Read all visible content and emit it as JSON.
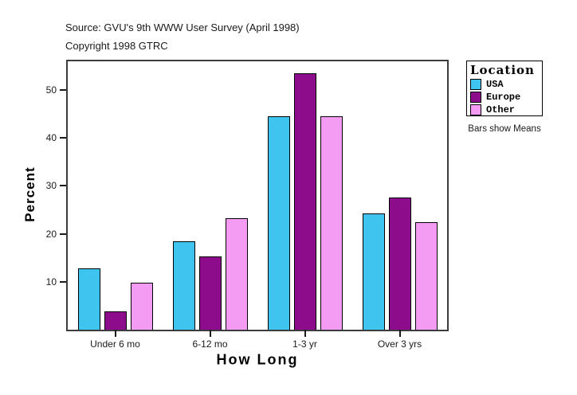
{
  "header": {
    "source": "Source: GVU's 9th WWW User Survey (April 1998)",
    "copyright": "Copyright 1998 GTRC"
  },
  "chart_data": {
    "type": "bar",
    "title": "",
    "categories": [
      "Under 6 mo",
      "6-12 mo",
      "1-3 yr",
      "Over 3 yrs"
    ],
    "series": [
      {
        "name": "USA",
        "color": "#3FC4EF",
        "values": [
          12.8,
          18.4,
          44.5,
          24.2
        ]
      },
      {
        "name": "Europe",
        "color": "#8C0C8C",
        "values": [
          3.9,
          15.3,
          53.5,
          27.6
        ]
      },
      {
        "name": "Other",
        "color": "#F49CF3",
        "values": [
          9.8,
          23.2,
          44.5,
          22.4
        ]
      }
    ],
    "xlabel": "How Long",
    "ylabel": "Percent",
    "ylim": [
      0,
      56
    ],
    "yticks": [
      10,
      20,
      30,
      40,
      50
    ],
    "grid": false,
    "legend_title": "Location",
    "legend_position": "right",
    "note": "Bars show Means"
  }
}
